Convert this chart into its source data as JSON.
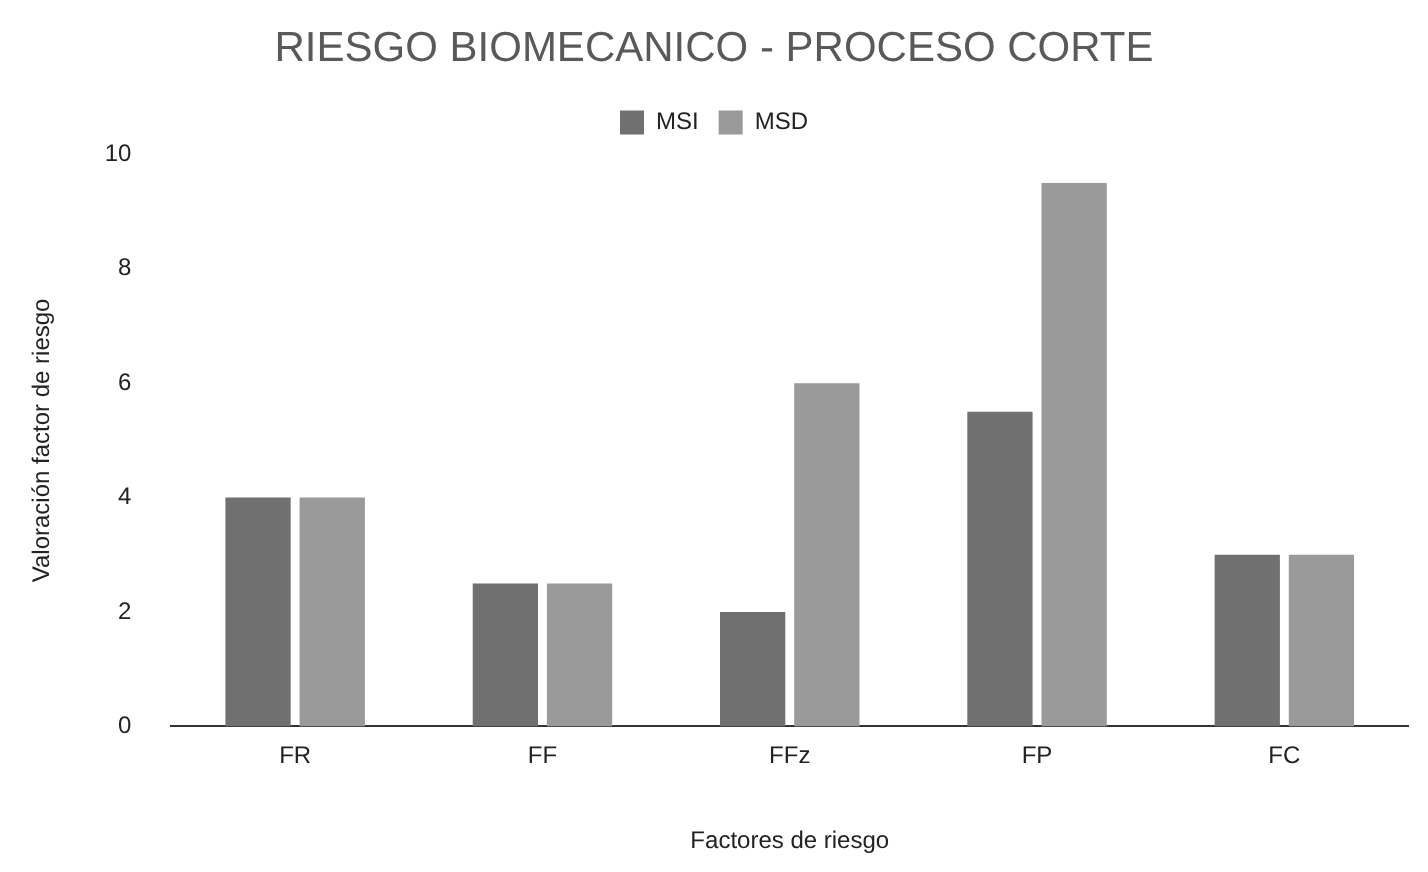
{
  "chart_data": {
    "type": "bar",
    "title": "RIESGO BIOMECANICO - PROCESO CORTE",
    "xlabel": "Factores de riesgo",
    "ylabel": "Valoración factor de riesgo",
    "categories": [
      "FR",
      "FF",
      "FFz",
      "FP",
      "FC"
    ],
    "series": [
      {
        "name": "MSI",
        "color": "#707070",
        "values": [
          4,
          2.5,
          2,
          5.5,
          3
        ]
      },
      {
        "name": "MSD",
        "color": "#9a9a9a",
        "values": [
          4,
          2.5,
          6,
          9.5,
          3
        ]
      }
    ],
    "ylim": [
      0,
      10
    ],
    "yticks": [
      0,
      2,
      4,
      6,
      8,
      10
    ],
    "grid": false,
    "legend": "top"
  }
}
